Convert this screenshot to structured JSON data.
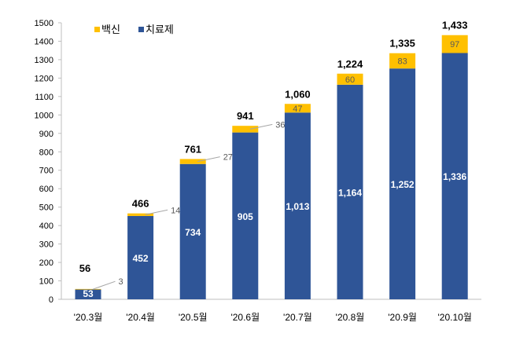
{
  "chart_data": {
    "type": "bar",
    "stacked": true,
    "categories": [
      "'20.3월",
      "'20.4월",
      "'20.5월",
      "'20.6월",
      "'20.7월",
      "'20.8월",
      "'20.9월",
      "'20.10월"
    ],
    "series": [
      {
        "name": "치료제",
        "color": "#2F5597",
        "values": [
          53,
          452,
          734,
          905,
          1013,
          1164,
          1252,
          1336
        ],
        "labels": [
          "53",
          "452",
          "734",
          "905",
          "1,013",
          "1,164",
          "1,252",
          "1,336"
        ]
      },
      {
        "name": "백신",
        "color": "#FFC000",
        "values": [
          3,
          14,
          27,
          36,
          47,
          60,
          83,
          97
        ],
        "labels": [
          "3",
          "14",
          "27",
          "36",
          "47",
          "60",
          "83",
          "97"
        ]
      }
    ],
    "totals": [
      "56",
      "466",
      "761",
      "941",
      "1,060",
      "1,224",
      "1,335",
      "1,433"
    ],
    "ylim": [
      0,
      1500
    ],
    "yticks": [
      "0",
      "100",
      "200",
      "300",
      "400",
      "500",
      "600",
      "700",
      "800",
      "900",
      "1000",
      "1100",
      "1200",
      "1300",
      "1400",
      "1500"
    ],
    "grid": false,
    "legend": "top-left",
    "title": "",
    "xlabel": "",
    "ylabel": ""
  }
}
